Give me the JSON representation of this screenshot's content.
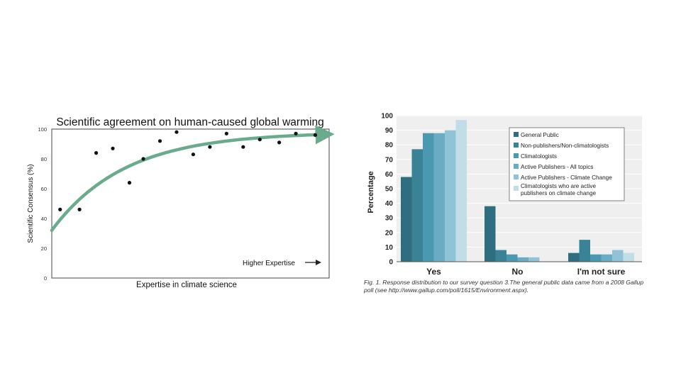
{
  "chart_data": [
    {
      "type": "scatter",
      "title": "Scientific agreement on human-caused global warming",
      "xlabel": "Expertise in climate science",
      "ylabel": "Scientific Consensus (%)",
      "ylim": [
        0,
        100
      ],
      "yticks": [
        0,
        20,
        40,
        60,
        80,
        100
      ],
      "xlim": [
        0,
        1
      ],
      "annotation": "Higher Expertise",
      "points": [
        {
          "x": 0.03,
          "y": 46
        },
        {
          "x": 0.1,
          "y": 46
        },
        {
          "x": 0.16,
          "y": 84
        },
        {
          "x": 0.22,
          "y": 87
        },
        {
          "x": 0.28,
          "y": 64
        },
        {
          "x": 0.33,
          "y": 80
        },
        {
          "x": 0.39,
          "y": 92
        },
        {
          "x": 0.45,
          "y": 98
        },
        {
          "x": 0.51,
          "y": 83
        },
        {
          "x": 0.57,
          "y": 88
        },
        {
          "x": 0.63,
          "y": 97
        },
        {
          "x": 0.69,
          "y": 88
        },
        {
          "x": 0.75,
          "y": 93
        },
        {
          "x": 0.82,
          "y": 91
        },
        {
          "x": 0.88,
          "y": 97
        },
        {
          "x": 0.95,
          "y": 96
        }
      ],
      "trend": {
        "start": 32,
        "end": 98,
        "rate": 3.8
      },
      "trend_color": "#6aab8e"
    },
    {
      "type": "bar",
      "ylabel": "Percentage",
      "ylim": [
        0,
        100
      ],
      "yticks": [
        0,
        10,
        20,
        30,
        40,
        50,
        60,
        70,
        80,
        90,
        100
      ],
      "categories": [
        "Yes",
        "No",
        "I'm not sure"
      ],
      "series": [
        {
          "name": "General Public",
          "values": [
            58,
            38,
            6
          ],
          "color": "#2f6e80"
        },
        {
          "name": "Non-publishers/Non-climatologists",
          "values": [
            77,
            8,
            15
          ],
          "color": "#3a8397"
        },
        {
          "name": "Climatologists",
          "values": [
            88,
            5,
            5
          ],
          "color": "#4b99b1"
        },
        {
          "name": "Active Publishers - All topics",
          "values": [
            88,
            3,
            5
          ],
          "color": "#6aacc4"
        },
        {
          "name": "Active Publishers - Climate Change",
          "values": [
            90,
            3,
            8
          ],
          "color": "#90c3d5"
        },
        {
          "name": "Climatologists who are active publishers on climate change",
          "values": [
            97,
            0,
            6
          ],
          "color": "#c1dde8"
        }
      ],
      "caption": "Fig. 1. Response distribution to our survey question 3.The general public data came from a 2008 Gallup poll (see http://www.gallup.com/poll/1615/Environment.aspx)."
    }
  ]
}
